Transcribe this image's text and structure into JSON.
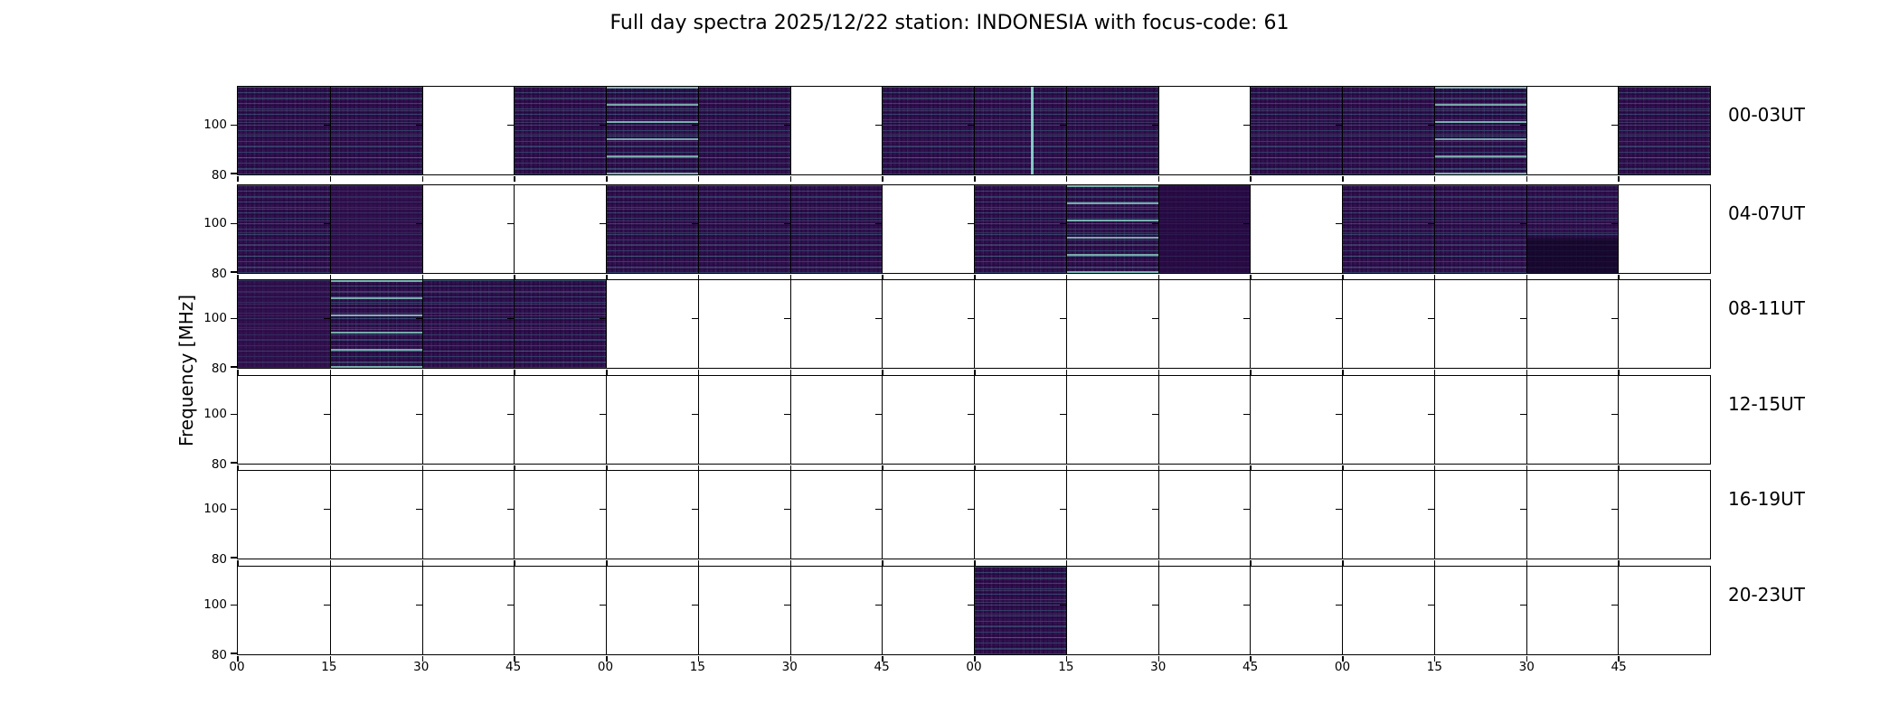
{
  "title": "Full day spectra 2025/12/22 station: INDONESIA with focus-code: 61",
  "ylabel": "Frequency [MHz]",
  "y_tick_labels": [
    "100",
    "80"
  ],
  "x_tick_labels": [
    "00",
    "15",
    "30",
    "45",
    "00",
    "15",
    "30",
    "45",
    "00",
    "15",
    "30",
    "45",
    "00",
    "15",
    "30",
    "45"
  ],
  "colors": {
    "background": "#ffffff",
    "frame": "#000000",
    "spectrogram_base": "#33104f",
    "spectrogram_dark": "#290a44",
    "streak_teal": "#4aa9a0",
    "streak_bright": "#98ecd4"
  },
  "rows": [
    {
      "label": "00-03UT",
      "cells": [
        {
          "f": 1,
          "v": 1
        },
        {
          "f": 1,
          "v": 1
        },
        {
          "f": 0
        },
        {
          "f": 1,
          "v": 1
        },
        {
          "f": 1,
          "v": 2
        },
        {
          "f": 1,
          "v": 1
        },
        {
          "f": 0
        },
        {
          "f": 1,
          "v": 1
        },
        {
          "f": 1,
          "v": 1,
          "burst": 0.62
        },
        {
          "f": 1,
          "v": 1
        },
        {
          "f": 0
        },
        {
          "f": 1,
          "v": 1
        },
        {
          "f": 1,
          "v": 1
        },
        {
          "f": 1,
          "v": 2
        },
        {
          "f": 0
        },
        {
          "f": 1,
          "v": 1
        }
      ]
    },
    {
      "label": "04-07UT",
      "cells": [
        {
          "f": 1,
          "v": 1
        },
        {
          "f": 1,
          "v": 0
        },
        {
          "f": 0
        },
        {
          "f": 0
        },
        {
          "f": 1,
          "v": 1
        },
        {
          "f": 1,
          "v": 1
        },
        {
          "f": 1,
          "v": 1
        },
        {
          "f": 0
        },
        {
          "f": 1,
          "v": 1
        },
        {
          "f": 1,
          "v": 2
        },
        {
          "f": 1,
          "v": 3
        },
        {
          "f": 0
        },
        {
          "f": 1,
          "v": 1
        },
        {
          "f": 1,
          "v": 1
        },
        {
          "f": 1,
          "v": 4
        },
        {
          "f": 0
        }
      ]
    },
    {
      "label": "08-11UT",
      "cells": [
        {
          "f": 1,
          "v": 0
        },
        {
          "f": 1,
          "v": 2
        },
        {
          "f": 1,
          "v": 1
        },
        {
          "f": 1,
          "v": 1
        },
        {
          "f": 0
        },
        {
          "f": 0
        },
        {
          "f": 0
        },
        {
          "f": 0
        },
        {
          "f": 0
        },
        {
          "f": 0
        },
        {
          "f": 0
        },
        {
          "f": 0
        },
        {
          "f": 0
        },
        {
          "f": 0
        },
        {
          "f": 0
        },
        {
          "f": 0
        }
      ]
    },
    {
      "label": "12-15UT",
      "cells": [
        {
          "f": 0
        },
        {
          "f": 0
        },
        {
          "f": 0
        },
        {
          "f": 0
        },
        {
          "f": 0
        },
        {
          "f": 0
        },
        {
          "f": 0
        },
        {
          "f": 0
        },
        {
          "f": 0
        },
        {
          "f": 0
        },
        {
          "f": 0
        },
        {
          "f": 0
        },
        {
          "f": 0
        },
        {
          "f": 0
        },
        {
          "f": 0
        },
        {
          "f": 0
        }
      ]
    },
    {
      "label": "16-19UT",
      "cells": [
        {
          "f": 0
        },
        {
          "f": 0
        },
        {
          "f": 0
        },
        {
          "f": 0
        },
        {
          "f": 0
        },
        {
          "f": 0
        },
        {
          "f": 0
        },
        {
          "f": 0
        },
        {
          "f": 0
        },
        {
          "f": 0
        },
        {
          "f": 0
        },
        {
          "f": 0
        },
        {
          "f": 0
        },
        {
          "f": 0
        },
        {
          "f": 0
        },
        {
          "f": 0
        }
      ]
    },
    {
      "label": "20-23UT",
      "cells": [
        {
          "f": 0
        },
        {
          "f": 0
        },
        {
          "f": 0
        },
        {
          "f": 0
        },
        {
          "f": 0
        },
        {
          "f": 0
        },
        {
          "f": 0
        },
        {
          "f": 0
        },
        {
          "f": 1,
          "v": 1
        },
        {
          "f": 0
        },
        {
          "f": 0
        },
        {
          "f": 0
        },
        {
          "f": 0
        },
        {
          "f": 0
        },
        {
          "f": 0
        },
        {
          "f": 0
        }
      ]
    }
  ],
  "chart_data": {
    "type": "heatmap",
    "title": "Full day spectra 2025/12/22 station: INDONESIA with focus-code: 61",
    "ylabel": "Frequency [MHz]",
    "y_axis_tick_values": [
      100,
      80
    ],
    "y_range_mhz": [
      80,
      116
    ],
    "row_labels": [
      "00-03UT",
      "04-07UT",
      "08-11UT",
      "12-15UT",
      "16-19UT",
      "20-23UT"
    ],
    "x_tick_labels": [
      "00",
      "15",
      "30",
      "45",
      "00",
      "15",
      "30",
      "45",
      "00",
      "15",
      "30",
      "45",
      "00",
      "15",
      "30",
      "45"
    ],
    "segments_per_row": 16,
    "segment_minutes": 15,
    "hours_per_row": 4,
    "data_present": [
      [
        1,
        1,
        0,
        1,
        1,
        1,
        0,
        1,
        1,
        1,
        0,
        1,
        1,
        1,
        0,
        1
      ],
      [
        1,
        1,
        0,
        0,
        1,
        1,
        1,
        0,
        1,
        1,
        1,
        0,
        1,
        1,
        1,
        0
      ],
      [
        1,
        1,
        1,
        1,
        0,
        0,
        0,
        0,
        0,
        0,
        0,
        0,
        0,
        0,
        0,
        0
      ],
      [
        0,
        0,
        0,
        0,
        0,
        0,
        0,
        0,
        0,
        0,
        0,
        0,
        0,
        0,
        0,
        0
      ],
      [
        0,
        0,
        0,
        0,
        0,
        0,
        0,
        0,
        0,
        0,
        0,
        0,
        0,
        0,
        0,
        0
      ],
      [
        0,
        0,
        0,
        0,
        0,
        0,
        0,
        0,
        1,
        0,
        0,
        0,
        0,
        0,
        0,
        0
      ]
    ],
    "colormap": "viridis-like: dark purple background with horizontal teal/cyan streaks; blank white where no data",
    "legend_position": "none",
    "grid": false
  }
}
